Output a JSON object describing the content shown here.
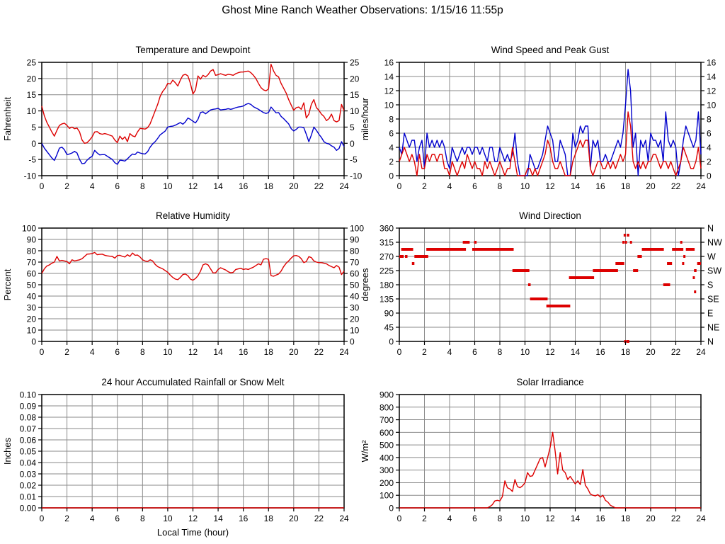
{
  "page": {
    "title": "Ghost Mine Ranch Weather Observations: 1/15/16 11:55p"
  },
  "colors": {
    "red": "#dd0000",
    "blue": "#0000cc",
    "grid": "#8a8a8a",
    "border": "#000000"
  },
  "chart_data": [
    {
      "type": "line",
      "title": "Temperature and Dewpoint",
      "ylabel": "Fahrenheit",
      "xlim": [
        0,
        24
      ],
      "xtick_step": 2,
      "ylim": [
        -10,
        25
      ],
      "ytick_step": 5,
      "right_labels": "mirror",
      "grid": true,
      "series": [
        {
          "name": "temperature",
          "color": "#dd0000",
          "x_step": 0.2,
          "values": [
            11.5,
            8.5,
            6.5,
            5,
            3.5,
            2.2,
            4,
            5.5,
            6,
            6.2,
            5.5,
            4.6,
            5,
            4.5,
            4.7,
            3.5,
            1,
            0,
            0.2,
            1,
            2,
            3.5,
            3.6,
            3,
            2.8,
            3,
            2.8,
            2.5,
            2.2,
            1,
            0.2,
            2.2,
            1.2,
            2,
            0.5,
            3,
            2.3,
            2,
            3.5,
            4.6,
            4.5,
            4.4,
            4.8,
            6,
            8,
            10,
            12,
            14.5,
            16,
            17,
            18.5,
            18.3,
            19.5,
            18.7,
            17.7,
            19.5,
            21,
            21.3,
            20.8,
            18.5,
            15.2,
            16.5,
            20.8,
            19.8,
            21,
            20.5,
            21.2,
            22.3,
            22.8,
            21,
            21.2,
            21.5,
            21.2,
            21,
            21.3,
            21.2,
            21,
            21.5,
            21.8,
            22,
            22,
            22.2,
            22.3,
            21.8,
            21,
            20,
            18.5,
            17.2,
            16.5,
            16.2,
            16.8,
            24.4,
            22.3,
            21,
            20.5,
            18.5,
            17,
            15.5,
            13.5,
            11.8,
            10.2,
            11,
            11.2,
            10.5,
            12.5,
            7.8,
            9,
            12,
            13.5,
            11,
            10.2,
            9,
            8.3,
            7,
            7.6,
            9,
            7,
            6.6,
            7,
            12,
            10
          ]
        },
        {
          "name": "dewpoint",
          "color": "#0000cc",
          "x_step": 0.2,
          "values": [
            0,
            -1.5,
            -2.5,
            -3.5,
            -4.5,
            -5.3,
            -3.5,
            -1.5,
            -1.2,
            -2,
            -3.5,
            -3.3,
            -3,
            -2.5,
            -3,
            -5,
            -6.3,
            -6.2,
            -5.2,
            -4.5,
            -4,
            -2.2,
            -3,
            -3.6,
            -3.5,
            -3.5,
            -4,
            -4.5,
            -5,
            -6,
            -6.5,
            -5.2,
            -5.3,
            -5.5,
            -4.8,
            -4,
            -3.3,
            -3.5,
            -2.7,
            -3,
            -3.2,
            -3.3,
            -2.6,
            -1.2,
            -0.2,
            0.5,
            1.5,
            2.6,
            3.2,
            3.8,
            5,
            5.2,
            5.3,
            5.6,
            6,
            6.4,
            5.9,
            6.6,
            7.8,
            7.4,
            6.8,
            6.3,
            7.4,
            9.5,
            9.7,
            9.1,
            9.7,
            10.3,
            10.5,
            10.6,
            10.8,
            10.3,
            10.4,
            10.5,
            10.7,
            10.5,
            10.7,
            11,
            11.2,
            11.3,
            11.5,
            12,
            12.3,
            12,
            11.3,
            10.9,
            10.5,
            10,
            9.5,
            9.2,
            9.5,
            11.2,
            10.3,
            9.4,
            9.5,
            8.3,
            7.6,
            6.8,
            6,
            4.5,
            3.8,
            4.3,
            5,
            5,
            4.8,
            2.8,
            0.5,
            2.5,
            5,
            4,
            2.8,
            1.8,
            0.5,
            0,
            -0.2,
            -0.8,
            -1.2,
            -2.2,
            -1.6,
            0.5,
            -1
          ]
        }
      ]
    },
    {
      "type": "line",
      "title": "Wind Speed and Peak Gust",
      "ylabel": "miles/hour",
      "xlim": [
        0,
        24
      ],
      "xtick_step": 2,
      "ylim": [
        0,
        16
      ],
      "ytick_step": 2,
      "right_labels": "mirror",
      "grid": true,
      "series": [
        {
          "name": "peak-gust",
          "color": "#0000cc",
          "x_step": 0.2,
          "values": [
            4,
            3,
            6,
            5,
            4,
            5,
            5,
            2,
            4,
            5,
            1,
            6,
            4,
            5,
            4,
            5,
            4,
            5,
            4,
            2,
            1,
            4,
            3,
            2,
            3,
            4,
            3,
            4,
            4,
            3,
            4,
            4,
            3,
            4,
            3,
            2,
            4,
            4,
            2,
            2,
            4,
            3,
            2,
            3,
            2,
            3,
            6,
            2,
            0,
            0,
            0,
            0,
            3,
            2,
            1,
            1,
            2,
            3,
            5,
            7,
            6,
            5,
            2,
            2,
            5,
            4,
            3,
            0,
            0,
            6,
            4,
            5,
            7,
            6,
            7,
            7,
            1,
            5,
            4,
            5,
            2,
            2,
            3,
            2,
            2,
            3,
            4,
            5,
            4,
            6,
            10,
            15,
            12,
            4,
            6,
            0,
            5,
            4,
            5,
            2,
            6,
            5,
            5,
            4,
            5,
            2,
            9,
            5,
            4,
            5,
            4,
            0,
            2,
            5,
            7,
            6,
            5,
            4,
            5,
            9,
            3
          ]
        },
        {
          "name": "wind-speed",
          "color": "#dd0000",
          "x_step": 0.2,
          "values": [
            2,
            3,
            4,
            3,
            2,
            3,
            2,
            0,
            3,
            1,
            1,
            3,
            2,
            3,
            3,
            2,
            3,
            3,
            1,
            1,
            0,
            2,
            1,
            0,
            1,
            2,
            1,
            3,
            2,
            1,
            2,
            1,
            1,
            0,
            2,
            1,
            2,
            1,
            0,
            1,
            2,
            1,
            0,
            1,
            1,
            4,
            2,
            0,
            0,
            0,
            0,
            1,
            1,
            0,
            1,
            0,
            1,
            2,
            3,
            5,
            4,
            2,
            1,
            1,
            2,
            1,
            0,
            0,
            0,
            2,
            3,
            4,
            5,
            4,
            5,
            5,
            1,
            0,
            1,
            2,
            2,
            1,
            1,
            2,
            1,
            2,
            1,
            2,
            3,
            2,
            3,
            9,
            7,
            2,
            1,
            2,
            1,
            2,
            1,
            2,
            2,
            3,
            3,
            2,
            1,
            2,
            2,
            1,
            2,
            1,
            0,
            1,
            2,
            4,
            3,
            2,
            1,
            1,
            2,
            4,
            1
          ]
        }
      ]
    },
    {
      "type": "line",
      "title": "Relative Humidity",
      "ylabel": "Percent",
      "xlim": [
        0,
        24
      ],
      "xtick_step": 2,
      "ylim": [
        0,
        100
      ],
      "ytick_step": 10,
      "right_labels": "mirror",
      "grid": true,
      "series": [
        {
          "name": "relative-humidity",
          "color": "#dd0000",
          "x_step": 0.2,
          "values": [
            60,
            64,
            66.5,
            67.5,
            69,
            70,
            75,
            71,
            71.5,
            71,
            70.5,
            68.5,
            72,
            71,
            71.5,
            72,
            73,
            75,
            77,
            77.2,
            77.5,
            78.5,
            76.5,
            76.8,
            77,
            76,
            75.5,
            75.2,
            75,
            73.5,
            75.8,
            76,
            75,
            74.5,
            76.5,
            75,
            78,
            76,
            76.2,
            74.5,
            72,
            71,
            70.5,
            72,
            71,
            68,
            66,
            65,
            64,
            62.5,
            61,
            58.5,
            56.5,
            55,
            54.5,
            56.5,
            59,
            59.5,
            58,
            55,
            54,
            55.5,
            58,
            62,
            67.5,
            68.5,
            67.5,
            64,
            60.5,
            60.5,
            63.5,
            65,
            64,
            63,
            61.5,
            60.5,
            61,
            63.5,
            64,
            64.5,
            63.5,
            64,
            63.5,
            64.5,
            65.5,
            67,
            68.5,
            67.5,
            72.5,
            73,
            72.5,
            58,
            57.5,
            58.5,
            59.5,
            62,
            66,
            69,
            71,
            73.5,
            75.5,
            75.8,
            75,
            73,
            69.5,
            70.5,
            74.8,
            74,
            71,
            70,
            69.5,
            69.5,
            69,
            68.5,
            67,
            66,
            65,
            67,
            65.5,
            59,
            62
          ]
        }
      ]
    },
    {
      "type": "segments",
      "title": "Wind Direction",
      "ylabel": "degrees",
      "xlim": [
        0,
        24
      ],
      "xtick_step": 2,
      "ylim": [
        0,
        360
      ],
      "ytick_step": 45,
      "right_labels": [
        "N",
        "NW",
        "W",
        "SW",
        "S",
        "SE",
        "E",
        "NE",
        "N"
      ],
      "grid": true,
      "color": "#dd0000",
      "segments": [
        [
          0.0,
          0.35,
          270
        ],
        [
          0.45,
          0.65,
          270
        ],
        [
          0.15,
          1.1,
          292.5
        ],
        [
          1.0,
          1.2,
          247.5
        ],
        [
          1.2,
          2.3,
          270
        ],
        [
          2.15,
          5.3,
          292.5
        ],
        [
          5.05,
          5.6,
          315
        ],
        [
          5.95,
          6.15,
          315
        ],
        [
          5.8,
          9.1,
          292.5
        ],
        [
          9.0,
          10.35,
          225
        ],
        [
          10.25,
          10.45,
          180
        ],
        [
          10.4,
          11.8,
          135
        ],
        [
          11.7,
          13.6,
          112.5
        ],
        [
          13.5,
          15.5,
          202.5
        ],
        [
          15.4,
          17.4,
          225
        ],
        [
          17.2,
          17.9,
          247.5
        ],
        [
          17.85,
          18.0,
          337.5
        ],
        [
          18.1,
          18.3,
          337.5
        ],
        [
          17.75,
          17.9,
          315
        ],
        [
          17.95,
          18.1,
          315
        ],
        [
          18.35,
          18.45,
          315
        ],
        [
          17.9,
          18.0,
          0
        ],
        [
          18.1,
          18.3,
          0
        ],
        [
          18.6,
          19.0,
          225
        ],
        [
          18.95,
          19.3,
          270
        ],
        [
          19.3,
          21.05,
          292.5
        ],
        [
          21.0,
          21.55,
          180
        ],
        [
          21.3,
          21.7,
          247.5
        ],
        [
          21.7,
          22.6,
          292.5
        ],
        [
          22.35,
          22.5,
          315
        ],
        [
          22.6,
          22.75,
          270
        ],
        [
          22.5,
          22.6,
          247.5
        ],
        [
          22.8,
          23.5,
          292.5
        ],
        [
          23.45,
          23.65,
          225
        ],
        [
          23.35,
          23.5,
          202.5
        ],
        [
          23.45,
          23.6,
          157.5
        ],
        [
          23.7,
          24.0,
          247.5
        ]
      ]
    },
    {
      "type": "line",
      "title": "24 hour Accumulated Rainfall or Snow Melt",
      "ylabel": "Inches",
      "xlabel": "Local Time (hour)",
      "xlim": [
        0,
        24
      ],
      "xtick_step": 2,
      "ylim": [
        0,
        0.1
      ],
      "ytick_step": 0.01,
      "y_decimals": 2,
      "right_labels": "none",
      "grid": true,
      "series": [
        {
          "name": "rainfall",
          "color": "#dd0000",
          "x_step": 12,
          "values": [
            0,
            0,
            0
          ]
        }
      ]
    },
    {
      "type": "line",
      "title": "Solar Irradiance",
      "ylabel": "W/m²",
      "xlim": [
        0,
        24
      ],
      "xtick_step": 2,
      "ylim": [
        0,
        900
      ],
      "ytick_step": 100,
      "right_labels": "none",
      "grid": true,
      "series": [
        {
          "name": "solar-irradiance",
          "color": "#dd0000",
          "x_step": 0.2,
          "values": [
            0,
            0,
            0,
            0,
            0,
            0,
            0,
            0,
            0,
            0,
            0,
            0,
            0,
            0,
            0,
            0,
            0,
            0,
            0,
            0,
            0,
            0,
            0,
            0,
            0,
            0,
            0,
            0,
            0,
            0,
            0,
            0,
            0,
            0,
            0,
            0,
            10,
            25,
            55,
            60,
            55,
            90,
            215,
            160,
            150,
            130,
            225,
            170,
            160,
            175,
            200,
            280,
            250,
            255,
            300,
            345,
            390,
            400,
            325,
            400,
            480,
            600,
            450,
            270,
            440,
            300,
            280,
            225,
            250,
            220,
            190,
            215,
            185,
            305,
            180,
            150,
            110,
            100,
            95,
            105,
            85,
            100,
            60,
            45,
            20,
            10,
            0,
            0,
            0,
            0,
            0,
            0,
            0,
            0,
            0,
            0,
            0,
            0,
            0,
            0,
            0,
            0,
            0,
            0,
            0,
            0,
            0,
            0,
            0,
            0,
            0,
            0,
            0,
            0,
            0,
            0,
            0,
            0,
            0,
            0,
            0
          ]
        }
      ]
    }
  ]
}
